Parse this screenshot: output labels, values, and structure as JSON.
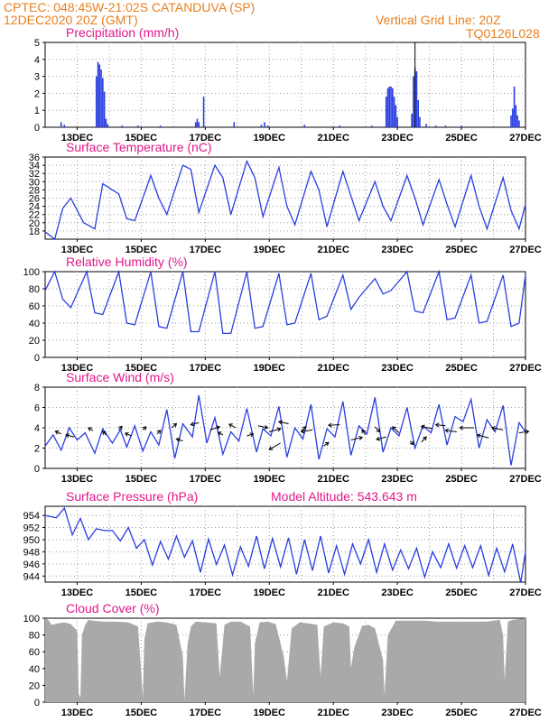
{
  "header": {
    "line1": "CPTEC:   048:45W-21:02S   CATANDUVA (SP)",
    "line2": "12DEC2020 20Z (GMT)",
    "grid_note": "Vertical Grid Line: 20Z",
    "model_code": "TQ0126L028"
  },
  "colors": {
    "header": "#e87f1e",
    "title": "#e0198a",
    "series": "#2a3ee0",
    "cloud": "#a9a9a9",
    "grid": "#9a9a9a"
  },
  "x_tick_labels": [
    "13DEC",
    "15DEC",
    "17DEC",
    "19DEC",
    "21DEC",
    "23DEC",
    "25DEC",
    "27DEC"
  ],
  "chart_data": [
    {
      "id": "precip",
      "type": "bar",
      "title": "Precipitation (mm/h)",
      "ylim": [
        0,
        5
      ],
      "yticks": [
        0,
        1,
        2,
        3,
        4,
        5
      ],
      "x_unit": "days since 12DEC2020 20Z",
      "bars": [
        [
          0.5,
          0.3
        ],
        [
          0.6,
          0.15
        ],
        [
          1.6,
          3.0
        ],
        [
          1.65,
          3.85
        ],
        [
          1.7,
          3.7
        ],
        [
          1.75,
          3.4
        ],
        [
          1.8,
          2.9
        ],
        [
          1.85,
          2.1
        ],
        [
          1.9,
          0.5
        ],
        [
          1.95,
          0.2
        ],
        [
          2.4,
          0.1
        ],
        [
          2.9,
          0.1
        ],
        [
          3.6,
          0.1
        ],
        [
          4.7,
          0.3
        ],
        [
          4.75,
          0.5
        ],
        [
          4.8,
          0.3
        ],
        [
          4.95,
          1.8
        ],
        [
          5.9,
          0.3
        ],
        [
          6.75,
          0.15
        ],
        [
          6.85,
          0.3
        ],
        [
          6.95,
          0.1
        ],
        [
          8.1,
          0.15
        ],
        [
          9.2,
          0.1
        ],
        [
          10.2,
          0.1
        ],
        [
          10.65,
          1.8
        ],
        [
          10.7,
          2.3
        ],
        [
          10.75,
          2.4
        ],
        [
          10.8,
          2.4
        ],
        [
          10.85,
          2.3
        ],
        [
          10.9,
          1.8
        ],
        [
          10.95,
          1.3
        ],
        [
          11.0,
          0.6
        ],
        [
          11.45,
          0.8
        ],
        [
          11.5,
          3.0
        ],
        [
          11.55,
          3.5
        ],
        [
          11.6,
          3.3
        ],
        [
          11.65,
          1.6
        ],
        [
          11.7,
          0.6
        ],
        [
          11.9,
          0.2
        ],
        [
          12.2,
          0.1
        ],
        [
          12.5,
          0.1
        ],
        [
          13.0,
          0.1
        ],
        [
          14.55,
          0.7
        ],
        [
          14.6,
          1.1
        ],
        [
          14.65,
          2.4
        ],
        [
          14.7,
          1.3
        ],
        [
          14.75,
          0.7
        ],
        [
          14.8,
          0.4
        ]
      ],
      "marker_line_x": 11.55
    },
    {
      "id": "temp",
      "type": "line",
      "title": "Surface Temperature (nC)",
      "ylim": [
        16,
        36
      ],
      "yticks": [
        18,
        20,
        22,
        24,
        26,
        28,
        30,
        32,
        34,
        36
      ],
      "x": [
        0,
        0.3,
        0.55,
        0.8,
        1.2,
        1.55,
        1.8,
        2.3,
        2.55,
        2.8,
        3.3,
        3.55,
        3.8,
        4.3,
        4.55,
        4.8,
        5.3,
        5.55,
        5.8,
        6.3,
        6.55,
        6.8,
        7.3,
        7.55,
        7.8,
        8.3,
        8.55,
        8.8,
        9.3,
        9.55,
        9.8,
        10.3,
        10.55,
        10.8,
        11.3,
        11.55,
        11.8,
        12.3,
        12.55,
        12.8,
        13.3,
        13.55,
        13.8,
        14.3,
        14.55,
        14.8,
        15.0
      ],
      "y": [
        17.8,
        16.0,
        23.5,
        26.0,
        20.0,
        18.5,
        29.5,
        27.0,
        21.0,
        20.5,
        31.5,
        26.0,
        22.0,
        34.0,
        33.0,
        22.5,
        34.0,
        31.0,
        22.0,
        35.0,
        31.0,
        21.5,
        33.5,
        24.0,
        19.5,
        32.5,
        28.0,
        19.0,
        32.5,
        26.5,
        20.5,
        30.0,
        24.0,
        20.5,
        31.5,
        26.0,
        19.5,
        30.5,
        24.5,
        19.0,
        31.5,
        24.0,
        18.5,
        31.0,
        23.0,
        18.5,
        24.5
      ]
    },
    {
      "id": "rh",
      "type": "line",
      "title": "Relative Humidity (%)",
      "ylim": [
        0,
        100
      ],
      "yticks": [
        0,
        20,
        40,
        60,
        80,
        100
      ],
      "x": [
        0,
        0.3,
        0.55,
        0.8,
        1.3,
        1.55,
        1.8,
        2.3,
        2.55,
        2.8,
        3.3,
        3.55,
        3.8,
        4.3,
        4.55,
        4.8,
        5.3,
        5.55,
        5.8,
        6.3,
        6.55,
        6.8,
        7.3,
        7.55,
        7.8,
        8.3,
        8.55,
        8.8,
        9.3,
        9.55,
        9.8,
        10.3,
        10.55,
        10.8,
        11.3,
        11.55,
        11.8,
        12.3,
        12.55,
        12.8,
        13.3,
        13.55,
        13.8,
        14.3,
        14.55,
        14.8,
        15.0
      ],
      "y": [
        78,
        100,
        68,
        58,
        100,
        52,
        50,
        100,
        40,
        38,
        100,
        36,
        34,
        100,
        30,
        30,
        100,
        28,
        28,
        100,
        34,
        36,
        98,
        38,
        40,
        98,
        44,
        48,
        96,
        56,
        70,
        92,
        74,
        78,
        100,
        54,
        52,
        100,
        44,
        46,
        96,
        40,
        42,
        96,
        36,
        40,
        96
      ]
    },
    {
      "id": "wind",
      "type": "line",
      "title": "Surface Wind (m/s)",
      "ylim": [
        0,
        8
      ],
      "yticks": [
        0,
        2,
        4,
        6,
        8
      ],
      "x": [
        0,
        0.25,
        0.5,
        0.75,
        1.0,
        1.25,
        1.55,
        1.8,
        2.1,
        2.35,
        2.55,
        2.8,
        3.05,
        3.3,
        3.55,
        3.8,
        4.05,
        4.3,
        4.6,
        4.8,
        5.05,
        5.3,
        5.55,
        5.8,
        6.05,
        6.3,
        6.6,
        6.8,
        7.05,
        7.3,
        7.55,
        7.8,
        8.05,
        8.3,
        8.55,
        8.8,
        9.05,
        9.3,
        9.55,
        9.8,
        10.05,
        10.3,
        10.55,
        10.8,
        11.05,
        11.3,
        11.55,
        11.8,
        12.05,
        12.3,
        12.55,
        12.8,
        13.05,
        13.3,
        13.55,
        13.8,
        14.05,
        14.3,
        14.55,
        14.8,
        15.0
      ],
      "y": [
        2.2,
        3.3,
        1.8,
        4.0,
        2.8,
        3.5,
        1.5,
        3.9,
        2.5,
        3.8,
        2.1,
        4.2,
        1.7,
        3.6,
        2.3,
        5.8,
        1.0,
        4.4,
        3.1,
        7.2,
        2.5,
        5.0,
        1.4,
        3.6,
        2.7,
        5.9,
        1.6,
        3.9,
        3.2,
        6.1,
        1.1,
        4.0,
        2.9,
        6.3,
        0.9,
        3.9,
        3.1,
        6.6,
        1.3,
        4.2,
        3.4,
        7.0,
        1.6,
        4.0,
        3.2,
        6.0,
        2.0,
        4.2,
        3.5,
        6.3,
        2.3,
        5.1,
        4.6,
        6.8,
        2.0,
        4.8,
        3.6,
        6.2,
        0.3,
        4.5,
        3.6
      ],
      "vectors": [
        [
          0.5,
          3.4,
          -0.18,
          0.25
        ],
        [
          0.9,
          3.1,
          -0.25,
          0.2
        ],
        [
          1.5,
          3.7,
          -0.15,
          0.3
        ],
        [
          1.9,
          3.3,
          -0.1,
          0.35
        ],
        [
          2.3,
          3.8,
          0.1,
          0.35
        ],
        [
          2.7,
          3.2,
          -0.2,
          0.25
        ],
        [
          3.05,
          3.8,
          0.1,
          0.3
        ],
        [
          3.5,
          3.4,
          0.1,
          0.35
        ],
        [
          3.95,
          4.0,
          0.15,
          0.4
        ],
        [
          4.3,
          2.7,
          -0.2,
          0.2
        ],
        [
          4.8,
          4.5,
          -0.25,
          -0.2
        ],
        [
          5.15,
          3.8,
          0.3,
          0.3
        ],
        [
          5.55,
          3.3,
          -0.15,
          0.25
        ],
        [
          5.95,
          4.0,
          -0.2,
          0.35
        ],
        [
          6.3,
          3.2,
          0.2,
          0.2
        ],
        [
          6.65,
          4.2,
          0.3,
          -0.2
        ],
        [
          7.0,
          3.6,
          0.35,
          0.3
        ],
        [
          7.35,
          2.5,
          -0.35,
          -0.65
        ],
        [
          7.6,
          4.4,
          -0.3,
          0.2
        ],
        [
          8.0,
          3.7,
          0.15,
          0.4
        ],
        [
          8.35,
          3.8,
          -0.35,
          -0.2
        ],
        [
          8.7,
          2.2,
          0.15,
          0.35
        ],
        [
          9.2,
          4.3,
          -0.35,
          -0.05
        ],
        [
          9.55,
          2.8,
          0.35,
          0.25
        ],
        [
          10.0,
          3.3,
          -0.1,
          0.5
        ],
        [
          10.3,
          4.1,
          0.15,
          -0.5
        ],
        [
          10.65,
          3.1,
          -0.3,
          -0.25
        ],
        [
          11.05,
          3.5,
          -0.2,
          0.6
        ],
        [
          11.4,
          2.7,
          0.1,
          -0.35
        ],
        [
          11.75,
          2.6,
          0.15,
          0.5
        ],
        [
          12.1,
          3.9,
          -0.35,
          0.25
        ],
        [
          12.5,
          4.2,
          -0.3,
          0.1
        ],
        [
          12.85,
          3.6,
          -0.35,
          0.15
        ],
        [
          13.4,
          4.0,
          -0.45,
          0.0
        ],
        [
          13.85,
          3.0,
          -0.35,
          0.3
        ],
        [
          14.3,
          3.8,
          -0.35,
          0.2
        ],
        [
          14.8,
          3.5,
          0.3,
          0.15
        ]
      ]
    },
    {
      "id": "pres",
      "type": "line",
      "title": "Surface Pressure (hPa)",
      "subtitle": "Model Altitude: 543.643 m",
      "ylim": [
        943,
        955.5
      ],
      "yticks": [
        944,
        946,
        948,
        950,
        952,
        954
      ],
      "x": [
        0,
        0.35,
        0.6,
        0.85,
        1.1,
        1.35,
        1.6,
        1.85,
        2.1,
        2.35,
        2.6,
        2.85,
        3.1,
        3.35,
        3.6,
        3.85,
        4.1,
        4.35,
        4.6,
        4.85,
        5.1,
        5.35,
        5.6,
        5.85,
        6.1,
        6.35,
        6.6,
        6.85,
        7.1,
        7.35,
        7.6,
        7.85,
        8.1,
        8.35,
        8.6,
        8.85,
        9.1,
        9.35,
        9.6,
        9.85,
        10.1,
        10.35,
        10.6,
        10.85,
        11.1,
        11.35,
        11.6,
        11.85,
        12.1,
        12.35,
        12.6,
        12.85,
        13.1,
        13.35,
        13.6,
        13.85,
        14.1,
        14.35,
        14.6,
        14.85,
        15.0
      ],
      "y": [
        954.0,
        953.6,
        955.2,
        950.8,
        953.5,
        950.0,
        951.8,
        951.5,
        951.5,
        949.8,
        952.0,
        948.6,
        950.0,
        945.8,
        949.7,
        946.8,
        950.6,
        947.1,
        949.8,
        944.6,
        950.1,
        945.9,
        949.1,
        944.2,
        948.8,
        945.6,
        950.6,
        945.2,
        950.2,
        945.5,
        950.3,
        944.3,
        950.0,
        944.9,
        950.6,
        944.5,
        949.0,
        944.3,
        949.3,
        946.0,
        950.0,
        944.6,
        949.3,
        945.0,
        948.3,
        945.2,
        948.6,
        943.8,
        948.0,
        945.4,
        949.3,
        945.3,
        949.0,
        945.4,
        949.0,
        944.1,
        948.6,
        944.7,
        949.3,
        942.9,
        948.0
      ]
    },
    {
      "id": "cloud",
      "type": "area",
      "title": "Cloud Cover (%)",
      "ylim": [
        0,
        100
      ],
      "yticks": [
        0,
        20,
        40,
        60,
        80,
        100
      ],
      "x": [
        0,
        0.1,
        0.2,
        0.4,
        0.6,
        0.8,
        1.0,
        1.05,
        1.1,
        1.15,
        1.25,
        1.35,
        1.5,
        1.8,
        2.2,
        2.6,
        2.9,
        3.05,
        3.1,
        3.2,
        3.5,
        3.8,
        4.1,
        4.3,
        4.35,
        4.45,
        4.55,
        4.7,
        5.0,
        5.35,
        5.45,
        5.6,
        5.8,
        6.1,
        6.4,
        6.5,
        6.55,
        6.7,
        6.95,
        7.2,
        7.45,
        7.55,
        7.7,
        7.95,
        8.2,
        8.5,
        8.6,
        8.7,
        9.0,
        9.3,
        9.5,
        9.55,
        9.65,
        9.9,
        10.1,
        10.3,
        10.55,
        10.6,
        10.7,
        10.95,
        11.3,
        11.6,
        11.9,
        12.2,
        12.5,
        12.8,
        13.1,
        13.4,
        13.6,
        13.8,
        14.0,
        14.2,
        14.3,
        14.35,
        14.45,
        14.6,
        14.8,
        15.0
      ],
      "y": [
        100,
        98,
        92,
        94,
        95,
        93,
        85,
        10,
        5,
        80,
        92,
        98,
        97,
        96,
        96,
        95,
        90,
        5,
        75,
        94,
        96,
        95,
        92,
        55,
        2,
        70,
        90,
        96,
        95,
        94,
        30,
        92,
        96,
        96,
        90,
        8,
        70,
        95,
        96,
        93,
        55,
        25,
        88,
        95,
        94,
        92,
        30,
        90,
        95,
        94,
        90,
        40,
        65,
        91,
        92,
        88,
        50,
        8,
        80,
        97,
        97,
        97,
        97,
        96,
        96,
        96,
        96,
        96,
        96,
        96,
        97,
        98,
        80,
        25,
        96,
        98,
        99,
        100
      ]
    }
  ]
}
